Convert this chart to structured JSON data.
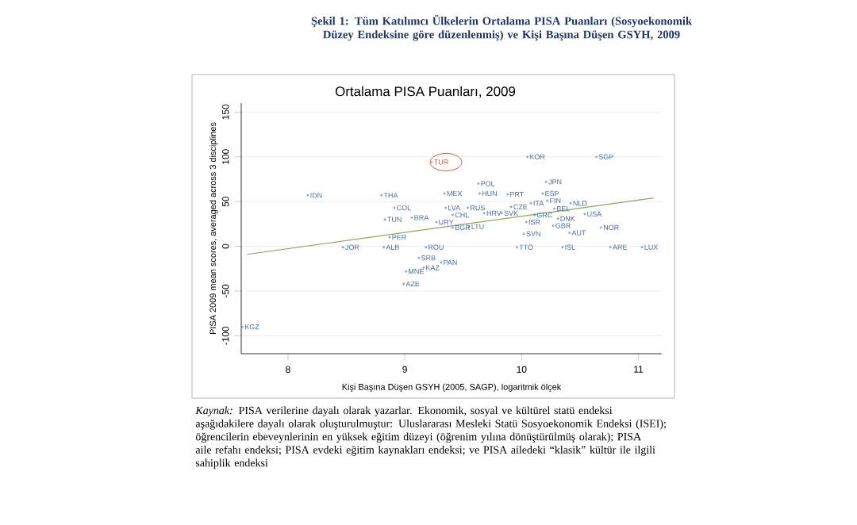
{
  "chart_data": {
    "type": "scatter",
    "title": "Şekil 1: Tüm Katılımcı Ülkelerin Ortalama PISA Puanları (Sosyoekonomik Düzey Endeksine göre düzenlenmiş) ve Kişi Başına Düşen GSYH, 2009",
    "subtitle": "Ortalama PISA Puanları, 2009",
    "xlabel": "Kişi Başına Düşen GSYH (2005, SAGP), logaritmik ölçek",
    "ylabel": "PISA 2009 mean scores, averaged across 3 disciplines",
    "xlim": [
      7.6,
      11.2
    ],
    "ylim": [
      -120,
      160
    ],
    "xticks": [
      8,
      9,
      10,
      11
    ],
    "yticks": [
      -100,
      -50,
      0,
      50,
      100,
      150
    ],
    "grid": "y",
    "annotations": [
      "*Kaynak:* PISA verilerine dayalı olarak yazarlar. Ekonomik, sosyal ve kültürel statü endeksi aşağıdakilere dayalı olarak oluşturulmuştur: Uluslararası Mesleki Statü Sosyoekonomik Endeksi (ISEI); öğrencilerin ebeveynlerinin en yüksek eğitim düzeyi (öğrenim yılına dönüştürülmüş olarak); PISA aile refahı endeksi; PISA evdeki eğitim kaynakları endeksi; ve PISA ailedeki “klasik” kültür ile ilgili sahiplik endeksi"
    ],
    "series": [
      {
        "type": "scatter",
        "marker": "circle",
        "color": "#4a6a94",
        "x": [
          10.05,
          10.64,
          10.21,
          9.63,
          9.64,
          9.34,
          8.8,
          8.17,
          9.88,
          10.18,
          10.22,
          10.08,
          8.91,
          9.91,
          9.35,
          9.54,
          9.68,
          9.41,
          10.28,
          10.42,
          8.83,
          9.06,
          9.83,
          10.11,
          10.54,
          10.04,
          10.31,
          10.27,
          9.27,
          9.41,
          9.55,
          10.41,
          10.68,
          10.02,
          8.87,
          8.47,
          8.82,
          9.18,
          9.96,
          10.35,
          10.76,
          11.03,
          9.12,
          9.31,
          9.16,
          9.01,
          8.99,
          7.61
        ],
        "values": [
          100,
          100,
          72,
          70,
          59,
          59,
          57,
          57,
          58,
          59,
          51,
          48,
          43,
          44,
          43,
          43,
          37,
          35,
          42,
          48,
          30,
          32,
          37,
          35,
          36,
          27,
          31,
          23,
          27,
          21,
          22,
          15,
          21,
          14,
          10,
          -1,
          -1,
          -1,
          -1,
          -1,
          -1,
          -1,
          -13,
          -18,
          -24,
          -28,
          -42,
          -90
        ],
        "value_labels": [
          "KOR",
          "SGP",
          "JPN",
          "POL",
          "HUN",
          "MEX",
          "THA",
          "IDN",
          "PRT",
          "ESP",
          "FIN",
          "ITA",
          "COL",
          "CZE",
          "LVA",
          "RUS",
          "HRV",
          "CHL",
          "BEL",
          "NLD",
          "TUN",
          "BRA",
          "SVK",
          "GRC",
          "USA",
          "ISR",
          "DNK",
          "GBR",
          "URY",
          "BGR",
          "LTU",
          "AUT",
          "NOR",
          "SVN",
          "PER",
          "JOR",
          "ALB",
          "ROU",
          "TTO",
          "ISL",
          "ARE",
          "LUX",
          "SRB",
          "PAN",
          "KAZ",
          "MNE",
          "AZE",
          "KGZ"
        ]
      },
      {
        "type": "scatter",
        "marker": "circle",
        "color": "#d9534f",
        "x": [
          9.23
        ],
        "values": [
          94
        ],
        "value_labels": [
          "TUR"
        ]
      },
      {
        "type": "line",
        "marker": "none",
        "color": "#8aa65a",
        "x": [
          7.65,
          11.13
        ],
        "values": [
          -9,
          54
        ]
      }
    ]
  }
}
